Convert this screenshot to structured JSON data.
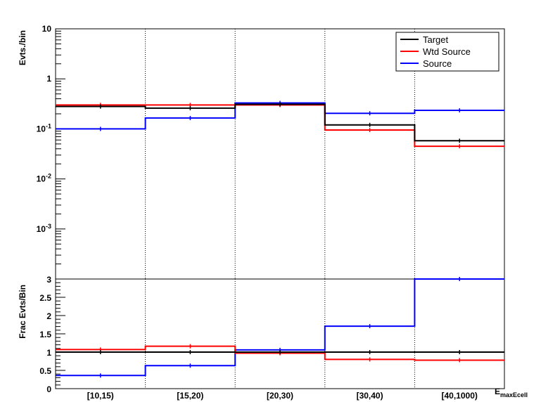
{
  "chart_data": [
    {
      "type": "line",
      "panel": "main",
      "ylabel": "Evts./bin",
      "yscale": "log",
      "ylim": [
        0.0001,
        10
      ],
      "y_tick_labels": [
        {
          "value": 10,
          "base": "10",
          "exp": ""
        },
        {
          "value": 1,
          "base": "1",
          "exp": ""
        },
        {
          "value": 0.1,
          "base": "10",
          "exp": "-1"
        },
        {
          "value": 0.01,
          "base": "10",
          "exp": "-2"
        },
        {
          "value": 0.001,
          "base": "10",
          "exp": "-3"
        }
      ],
      "categories": [
        "[10,15)",
        "[15,20)",
        "[20,30)",
        "[30,40)",
        "[40,1000)"
      ],
      "series": [
        {
          "name": "Target",
          "color": "#000000",
          "values": [
            0.28,
            0.26,
            0.31,
            0.12,
            0.058
          ]
        },
        {
          "name": "Wtd Source",
          "color": "#ff0000",
          "values": [
            0.3,
            0.3,
            0.3,
            0.095,
            0.045
          ]
        },
        {
          "name": "Source",
          "color": "#0000ff",
          "values": [
            0.1,
            0.165,
            0.33,
            0.205,
            0.235
          ]
        }
      ],
      "legend": "top-right",
      "grid": "vertical dotted at bin edges"
    },
    {
      "type": "line",
      "panel": "ratio",
      "ylabel": "Frac Evts/Bin",
      "ylim": [
        0,
        3
      ],
      "y_tick_labels": [
        "0",
        "0.5",
        "1",
        "1.5",
        "2",
        "2.5",
        "3"
      ],
      "x_tick_labels": [
        "[10,15)",
        "[15,20)",
        "[20,30)",
        "[30,40)",
        "[40,1000)"
      ],
      "xlabel": "E_maxEcell",
      "categories": [
        "[10,15)",
        "[15,20)",
        "[20,30)",
        "[30,40)",
        "[40,1000)"
      ],
      "series": [
        {
          "name": "Target",
          "color": "#000000",
          "values": [
            1.0,
            1.0,
            1.0,
            1.0,
            1.0
          ]
        },
        {
          "name": "Wtd Source",
          "color": "#ff0000",
          "values": [
            1.07,
            1.16,
            0.97,
            0.8,
            0.78
          ]
        },
        {
          "name": "Source",
          "color": "#0000ff",
          "values": [
            0.36,
            0.63,
            1.06,
            1.71,
            3.0
          ]
        }
      ]
    }
  ]
}
